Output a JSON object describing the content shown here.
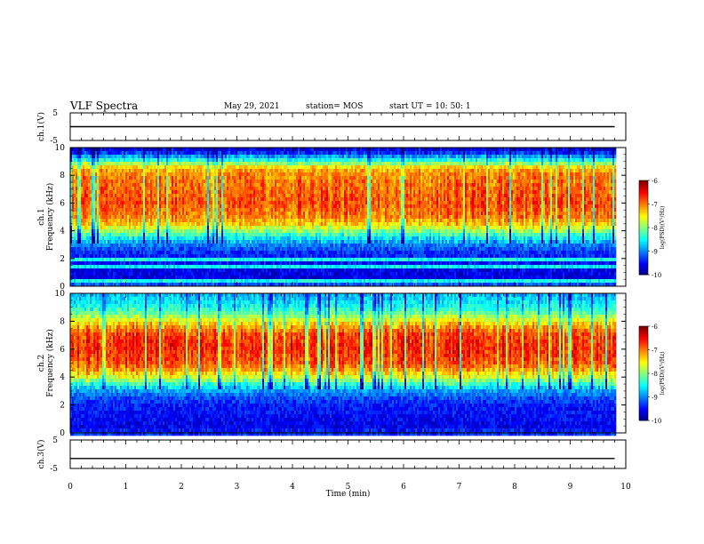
{
  "header": {
    "title": "VLF Spectra",
    "date": "May 29, 2021",
    "station": "station= MOS",
    "start": "start  UT  =   10: 50: 1"
  },
  "chart_data": [
    {
      "type": "line",
      "panel": "ch1-waveform",
      "ylabel": "ch.1(V)",
      "ylim": [
        -5,
        5
      ],
      "yticks": [
        "5",
        "-5"
      ],
      "xlim": [
        0,
        10
      ],
      "series": [
        {
          "x": [
            0,
            9.8
          ],
          "values": [
            0,
            0
          ]
        }
      ]
    },
    {
      "type": "heatmap",
      "panel": "ch1-spectrogram",
      "ylabel": "ch.1\nFrequency (kHz)",
      "ylim": [
        0,
        10
      ],
      "yticks": [
        "0",
        "2",
        "4",
        "6",
        "8",
        "10"
      ],
      "xlim": [
        0,
        10
      ],
      "x_data_end": 9.8,
      "colorbar": {
        "label": "log(PSD)(V²/Hz)",
        "range": [
          -10,
          -6
        ],
        "ticks": [
          "-6",
          "-7",
          "-8",
          "-9",
          "-10"
        ]
      },
      "profile": {
        "freq_khz": [
          0,
          0.5,
          1,
          1.5,
          2,
          2.5,
          3,
          3.5,
          4,
          4.5,
          5,
          6,
          7,
          8,
          8.5,
          8.8,
          9.2,
          9.6,
          10
        ],
        "log_psd": [
          -9.0,
          -9.6,
          -9.6,
          -9.5,
          -9.4,
          -9.3,
          -9.0,
          -8.5,
          -7.9,
          -7.3,
          -7.0,
          -6.8,
          -6.9,
          -7.0,
          -7.2,
          -7.8,
          -8.6,
          -9.3,
          -9.7
        ]
      }
    },
    {
      "type": "heatmap",
      "panel": "ch2-spectrogram",
      "ylabel": "ch.2\nFrequency (kHz)",
      "ylim": [
        0,
        10
      ],
      "yticks": [
        "0",
        "2",
        "4",
        "6",
        "8",
        "10"
      ],
      "xlim": [
        0,
        10
      ],
      "x_data_end": 9.8,
      "colorbar": {
        "label": "log(PSD)(V²/Hz)",
        "range": [
          -10,
          -6
        ],
        "ticks": [
          "-6",
          "-7",
          "-8",
          "-9",
          "-10"
        ]
      },
      "profile": {
        "freq_khz": [
          0,
          0.5,
          1,
          2,
          2.5,
          3,
          3.5,
          4,
          4.5,
          5,
          6,
          7,
          7.5,
          8,
          8.5,
          9,
          9.5,
          10
        ],
        "log_psd": [
          -9.3,
          -9.6,
          -9.5,
          -9.4,
          -9.2,
          -8.9,
          -8.3,
          -7.6,
          -7.1,
          -6.8,
          -6.6,
          -6.7,
          -7.0,
          -7.5,
          -8.0,
          -8.4,
          -8.6,
          -8.8
        ]
      }
    },
    {
      "type": "line",
      "panel": "ch3-waveform",
      "ylabel": "ch.3(V)",
      "ylim": [
        -5,
        5
      ],
      "yticks": [
        "5",
        "-5"
      ],
      "xlim": [
        0,
        10
      ],
      "xlabel": "Time (min)",
      "xticks": [
        "0",
        "1",
        "2",
        "3",
        "4",
        "5",
        "6",
        "7",
        "8",
        "9",
        "10"
      ],
      "series": [
        {
          "x": [
            0,
            9.8
          ],
          "values": [
            -1.5,
            -1.5
          ]
        }
      ]
    }
  ]
}
